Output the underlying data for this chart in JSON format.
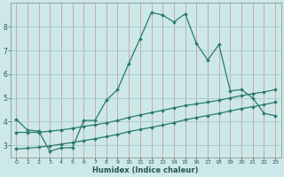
{
  "xlabel": "Humidex (Indice chaleur)",
  "background_color": "#cce8e8",
  "grid_color": "#aacaca",
  "line_color": "#2a7a6a",
  "xlim": [
    -0.5,
    23.5
  ],
  "ylim": [
    2.5,
    9.0
  ],
  "xticks": [
    0,
    1,
    2,
    3,
    4,
    5,
    6,
    7,
    8,
    9,
    10,
    11,
    12,
    13,
    14,
    15,
    16,
    17,
    18,
    19,
    20,
    21,
    22,
    23
  ],
  "yticks": [
    3,
    4,
    5,
    6,
    7,
    8
  ],
  "line1_x": [
    0,
    1,
    2,
    3,
    4,
    5,
    6,
    7,
    8,
    9,
    10,
    11,
    12,
    13,
    14,
    15,
    16,
    17,
    18,
    19,
    20,
    21,
    22,
    23
  ],
  "line1_y": [
    4.1,
    3.65,
    3.6,
    2.75,
    2.9,
    2.9,
    4.05,
    4.05,
    4.9,
    5.35,
    6.45,
    7.5,
    8.6,
    8.5,
    8.2,
    8.55,
    7.3,
    6.6,
    7.25,
    5.3,
    5.35,
    5.0,
    4.35,
    4.25
  ],
  "line2_x": [
    0,
    1,
    2,
    3,
    4,
    5,
    6,
    7,
    8,
    9,
    10,
    11,
    12,
    13,
    14,
    15,
    16,
    17,
    18,
    19,
    20,
    21,
    22,
    23
  ],
  "line2_y": [
    3.55,
    3.55,
    3.55,
    3.6,
    3.65,
    3.72,
    3.8,
    3.87,
    3.95,
    4.05,
    4.18,
    4.28,
    4.38,
    4.48,
    4.58,
    4.68,
    4.75,
    4.82,
    4.9,
    5.0,
    5.1,
    5.18,
    5.25,
    5.35
  ],
  "line3_x": [
    0,
    1,
    2,
    3,
    4,
    5,
    6,
    7,
    8,
    9,
    10,
    11,
    12,
    13,
    14,
    15,
    16,
    17,
    18,
    19,
    20,
    21,
    22,
    23
  ],
  "line3_y": [
    2.85,
    2.88,
    2.92,
    2.98,
    3.05,
    3.12,
    3.2,
    3.28,
    3.37,
    3.46,
    3.58,
    3.67,
    3.76,
    3.85,
    3.96,
    4.08,
    4.17,
    4.26,
    4.35,
    4.45,
    4.55,
    4.63,
    4.72,
    4.82
  ]
}
